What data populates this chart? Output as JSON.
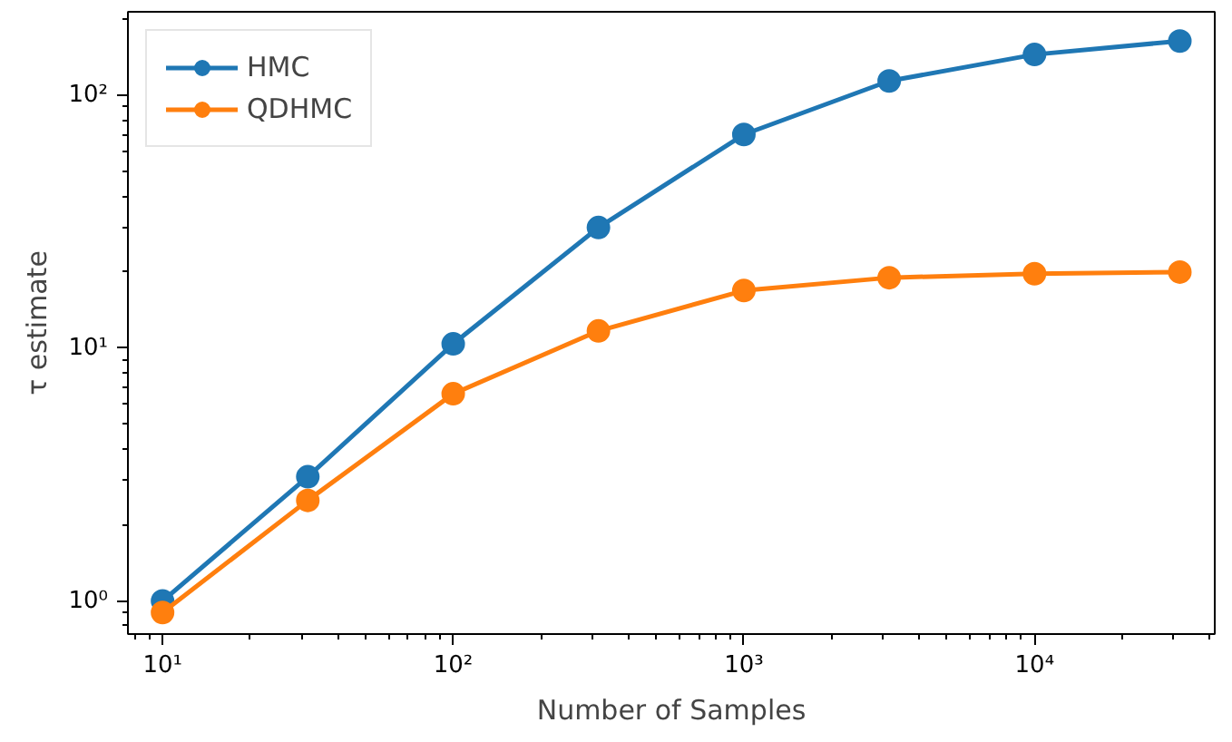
{
  "chart_data": {
    "type": "line",
    "xlabel": "Number of Samples",
    "ylabel": "τ estimate",
    "x": [
      10,
      31.6,
      100,
      316,
      1000,
      3162,
      10000,
      31623
    ],
    "series": [
      {
        "name": "HMC",
        "color": "#1f77b4",
        "values": [
          1.0,
          3.1,
          10.4,
          30,
          70,
          114,
          145,
          164
        ]
      },
      {
        "name": "QDHMC",
        "color": "#ff7f0e",
        "values": [
          0.9,
          2.5,
          6.6,
          11.7,
          16.9,
          19,
          19.7,
          20
        ]
      }
    ],
    "log": "xy",
    "xlim": [
      7.6,
      41700
    ],
    "ylim": [
      0.74,
      214
    ],
    "xticks": [
      {
        "value": 10,
        "label": "10¹"
      },
      {
        "value": 100,
        "label": "10²"
      },
      {
        "value": 1000,
        "label": "10³"
      },
      {
        "value": 10000,
        "label": "10⁴"
      }
    ],
    "yticks": [
      {
        "value": 1,
        "label": "10⁰"
      },
      {
        "value": 10,
        "label": "10¹"
      },
      {
        "value": 100,
        "label": "10²"
      }
    ],
    "grid": false,
    "legend": "top left",
    "marker": "circle",
    "line_style": "solid"
  }
}
